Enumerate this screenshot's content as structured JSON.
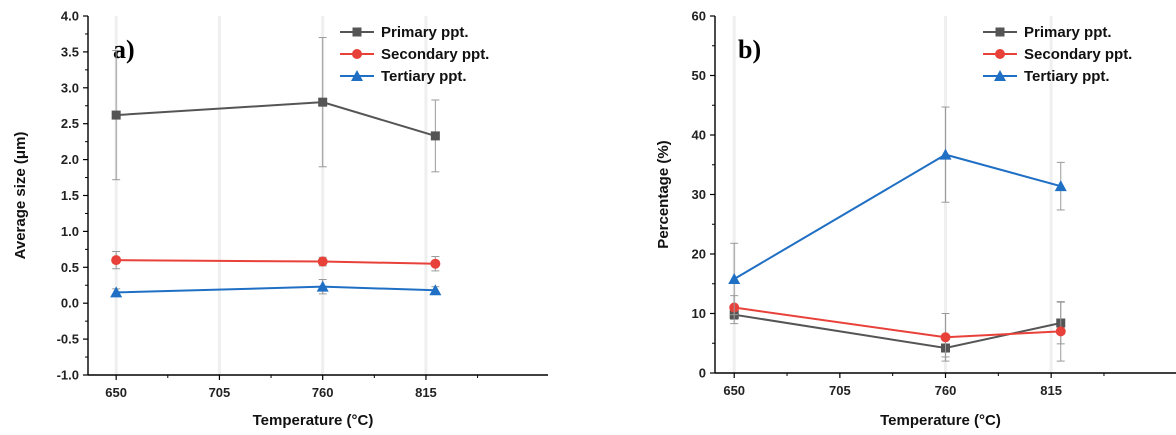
{
  "chart_data": [
    {
      "type": "line",
      "panel_label": "a)",
      "xlabel": "Temperature (°C)",
      "ylabel": "Average size (μm)",
      "x_ticks": [
        650,
        705,
        760,
        815
      ],
      "xlim": [
        635,
        880
      ],
      "ylim": [
        -1.0,
        4.0
      ],
      "y_ticks": [
        "-1.0",
        "-0.5",
        "0.0",
        "0.5",
        "1.0",
        "1.5",
        "2.0",
        "2.5",
        "3.0",
        "3.5",
        "4.0"
      ],
      "legend_position": "top-right",
      "series": [
        {
          "name": "Primary ppt.",
          "color": "#555555",
          "marker": "square",
          "x": [
            650,
            760,
            820
          ],
          "y": [
            2.62,
            2.8,
            2.33
          ],
          "err": [
            0.9,
            0.9,
            0.5
          ]
        },
        {
          "name": "Secondary ppt.",
          "color": "#e8413a",
          "marker": "circle",
          "x": [
            650,
            760,
            820
          ],
          "y": [
            0.6,
            0.58,
            0.55
          ],
          "err": [
            0.12,
            0.06,
            0.1
          ]
        },
        {
          "name": "Tertiary ppt.",
          "color": "#1f6fc4",
          "marker": "triangle",
          "x": [
            650,
            760,
            820
          ],
          "y": [
            0.15,
            0.23,
            0.18
          ],
          "err": [
            0.05,
            0.1,
            0.05
          ]
        }
      ]
    },
    {
      "type": "line",
      "panel_label": "b)",
      "xlabel": "Temperature (°C)",
      "ylabel": "Percentage (%)",
      "x_ticks": [
        650,
        705,
        760,
        815
      ],
      "xlim": [
        640,
        880
      ],
      "ylim": [
        0,
        60
      ],
      "y_ticks": [
        "0",
        "10",
        "20",
        "30",
        "40",
        "50",
        "60"
      ],
      "legend_position": "top-right",
      "series": [
        {
          "name": "Primary ppt.",
          "color": "#555555",
          "marker": "square",
          "x": [
            650,
            760,
            820
          ],
          "y": [
            9.8,
            4.2,
            8.4
          ],
          "err": [
            1.5,
            1.5,
            3.5
          ]
        },
        {
          "name": "Secondary ppt.",
          "color": "#e8413a",
          "marker": "circle",
          "x": [
            650,
            760,
            820
          ],
          "y": [
            11.0,
            6.0,
            7.0
          ],
          "err": [
            2.0,
            4.0,
            5.0
          ]
        },
        {
          "name": "Tertiary ppt.",
          "color": "#1f6fc4",
          "marker": "triangle",
          "x": [
            650,
            760,
            820
          ],
          "y": [
            15.8,
            36.7,
            31.4
          ],
          "err": [
            6.0,
            8.0,
            4.0
          ]
        }
      ]
    }
  ]
}
